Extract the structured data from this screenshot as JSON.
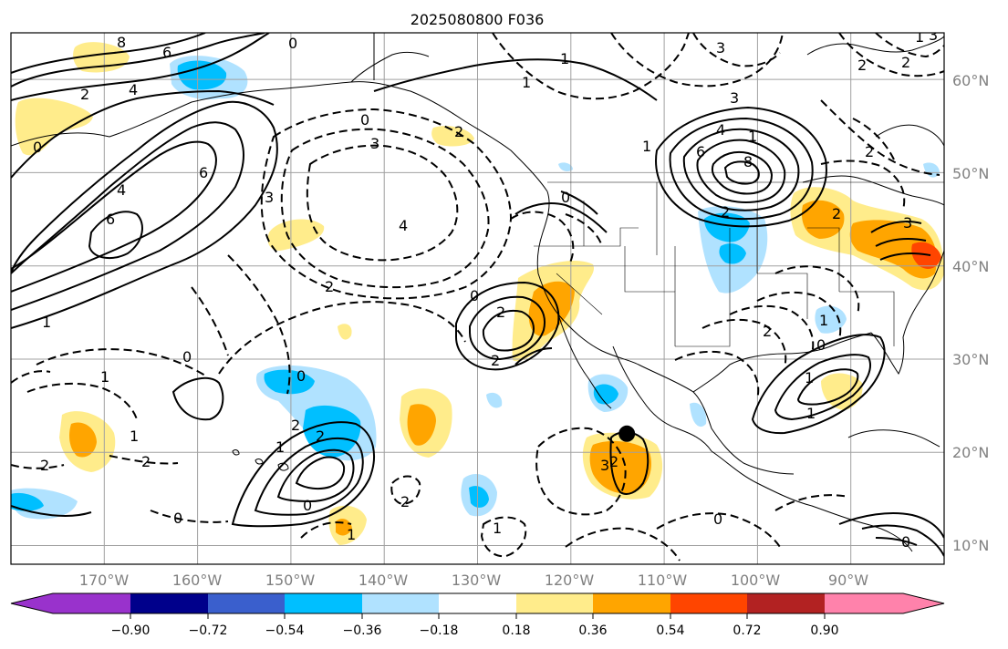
{
  "figure": {
    "title": "2025080800 F036"
  },
  "map": {
    "lon_range": [
      -180,
      -80
    ],
    "lat_range": [
      8,
      65
    ],
    "lat_labels": [
      "60°N",
      "50°N",
      "40°N",
      "30°N",
      "20°N",
      "10°N"
    ],
    "lon_labels": [
      "170°W",
      "160°W",
      "150°W",
      "140°W",
      "130°W",
      "120°W",
      "110°W",
      "100°W",
      "90°W"
    ],
    "grid": true,
    "contour_labels": [
      "8",
      "6",
      "0",
      "3",
      "2",
      "4",
      "0",
      "1",
      "0",
      "6",
      "4",
      "6",
      "1",
      "2",
      "4",
      "3",
      "0",
      "2",
      "0",
      "1",
      "2",
      "2",
      "2",
      "1",
      "0",
      "0",
      "2",
      "1",
      "2",
      "2",
      "1",
      "0",
      "1",
      "3",
      "2",
      "1",
      "1",
      "0",
      "0",
      "1",
      "2",
      "2",
      "3",
      "6",
      "4",
      "8",
      "1",
      "2",
      "2",
      "2",
      "1",
      "3",
      "3",
      "2",
      "1",
      "2",
      "3",
      "0",
      "1",
      "0"
    ],
    "marker": {
      "label": "point",
      "lon": -114,
      "lat": 22
    }
  },
  "colorbar": {
    "tick_labels": [
      "−0.90",
      "−0.72",
      "−0.54",
      "−0.36",
      "−0.18",
      "0.18",
      "0.36",
      "0.54",
      "0.72",
      "0.90"
    ],
    "colors": [
      "#9932cc",
      "#00008b",
      "#3a5fcd",
      "#00bfff",
      "#b0e2ff",
      "#ffffff",
      "#ffec8b",
      "#ffa500",
      "#ff4500",
      "#b22222",
      "#ff82ab"
    ]
  }
}
